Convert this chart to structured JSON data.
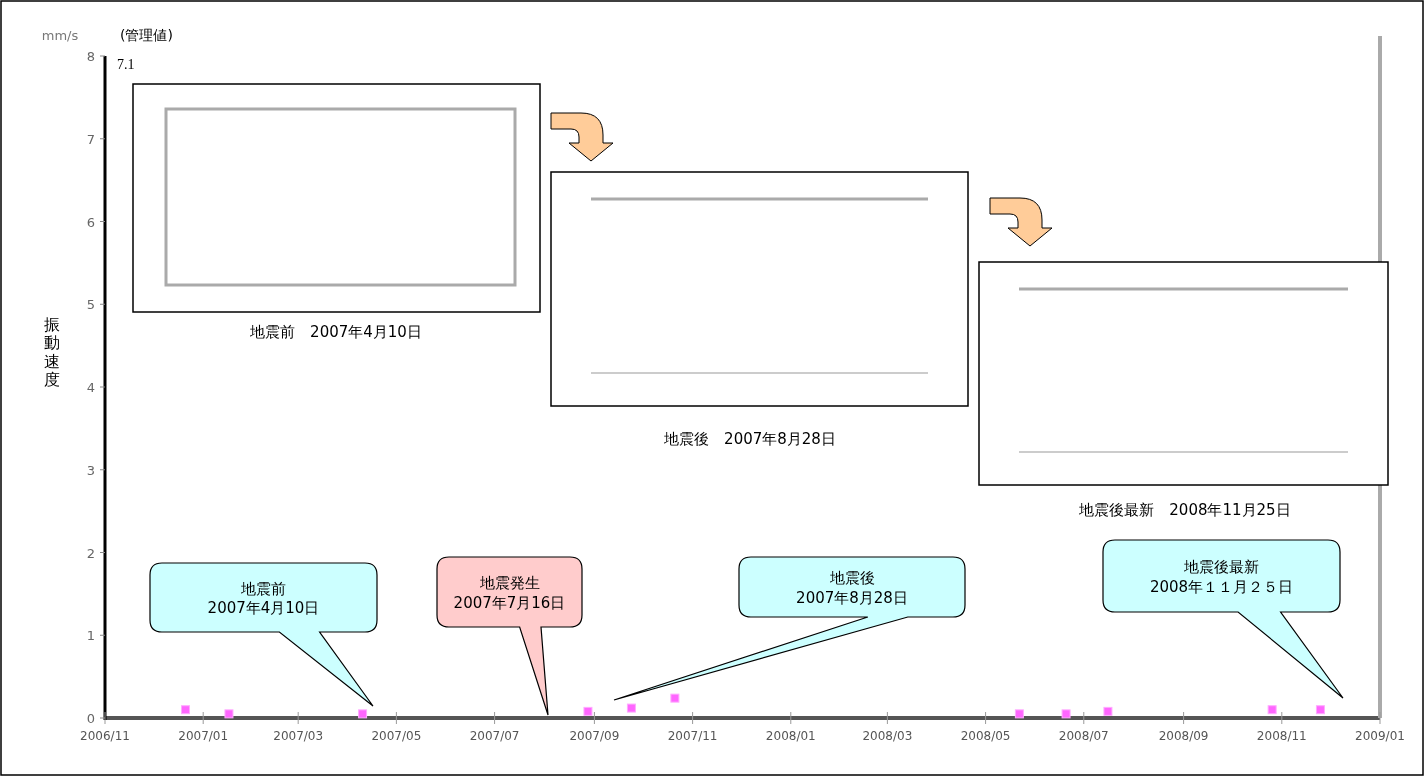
{
  "chart_data": {
    "type": "scatter",
    "ylabel": "振動速度",
    "x": [
      "2006-12-21",
      "2007-01-17",
      "2007-04-10",
      "2007-08-28",
      "2007-09-24",
      "2007-10-21",
      "2008-05-22",
      "2008-06-20",
      "2008-07-16",
      "2008-10-26",
      "2008-11-25"
    ],
    "series": [
      {
        "color": "#ff66ff",
        "values": [
          0.1,
          0.05,
          0.05,
          0.08,
          0.12,
          0.24,
          0.05,
          0.05,
          0.08,
          0.1,
          0.1
        ]
      }
    ],
    "marker": "square",
    "grid": false,
    "ylim": [
      0,
      8
    ],
    "yticks": [
      0,
      1,
      2,
      3,
      4,
      5,
      6,
      7,
      8
    ],
    "xlim": [
      "2006-11-01",
      "2009-01-01"
    ],
    "xticks": [
      {
        "value": "2006-11-01",
        "label": "2006/11"
      },
      {
        "value": "2007-01-01",
        "label": "2007/01"
      },
      {
        "value": "2007-03-01",
        "label": "2007/03"
      },
      {
        "value": "2007-05-01",
        "label": "2007/05"
      },
      {
        "value": "2007-07-01",
        "label": "2007/07"
      },
      {
        "value": "2007-09-01",
        "label": "2007/09"
      },
      {
        "value": "2007-11-01",
        "label": "2007/11"
      },
      {
        "value": "2008-01-01",
        "label": "2008/01"
      },
      {
        "value": "2008-03-01",
        "label": "2008/03"
      },
      {
        "value": "2008-05-01",
        "label": "2008/05"
      },
      {
        "value": "2008-07-01",
        "label": "2008/07"
      },
      {
        "value": "2008-09-01",
        "label": "2008/09"
      },
      {
        "value": "2008-11-01",
        "label": "2008/11"
      },
      {
        "value": "2009-01-01",
        "label": "2009/01"
      }
    ],
    "annotations": [
      "mm/s",
      "(管理値)",
      "7.1",
      "地震前　2007年4月10日",
      "地震後　2007年8月28日",
      "地震後最新　2008年11月25日",
      "地震前\n2007年4月10日",
      "地震発生\n2007年7月16日",
      "地震後\n2007年8月28日",
      "地震後最新\n2008年１１月２５日"
    ]
  }
}
